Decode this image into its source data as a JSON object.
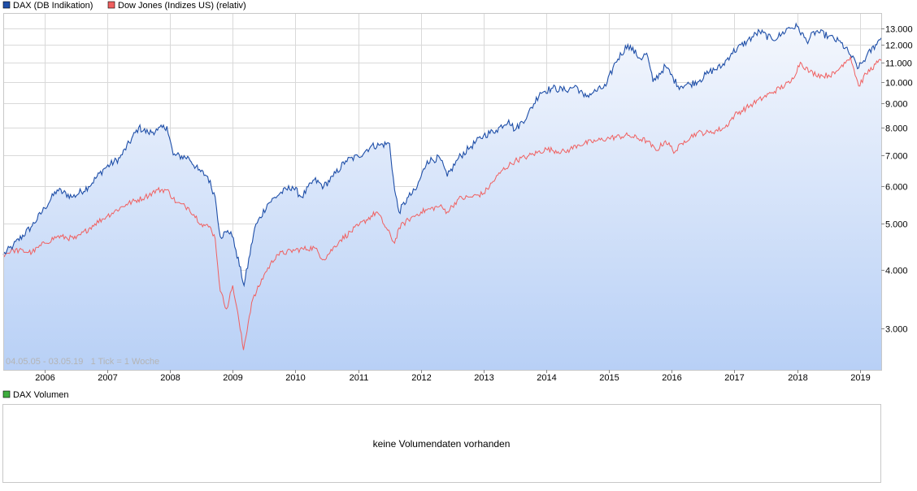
{
  "colors": {
    "dax_line": "#1f4fa8",
    "dow_line": "#f06060",
    "volume_legend": "#3fae3f",
    "grid": "#d9d9d9",
    "area_top": "#f4f7fd",
    "area_bottom": "#b8d0f6"
  },
  "legend": {
    "dax": "DAX (DB Indikation)",
    "dow": "Dow Jones (Indizes US) (relativ)"
  },
  "info_text": "04.05.05 - 03.05.19   1 Tick = 1 Woche",
  "volume": {
    "legend": "DAX Volumen",
    "message": "keine Volumendaten vorhanden"
  },
  "chart_data": {
    "type": "line",
    "title": "",
    "xlabel": "",
    "ylabel": "",
    "yscale": "log",
    "xlim": [
      2005.34,
      2019.34
    ],
    "ylim": [
      2450,
      14000
    ],
    "x_ticks": [
      2006,
      2007,
      2008,
      2009,
      2010,
      2011,
      2012,
      2013,
      2014,
      2015,
      2016,
      2017,
      2018,
      2019
    ],
    "x_tick_labels": [
      "2006",
      "2007",
      "2008",
      "2009",
      "2010",
      "2011",
      "2012",
      "2013",
      "2014",
      "2015",
      "2016",
      "2017",
      "2018",
      "2019"
    ],
    "y_ticks": [
      3000,
      4000,
      5000,
      6000,
      7000,
      8000,
      9000,
      10000,
      11000,
      12000,
      13000
    ],
    "y_tick_labels": [
      "3.000",
      "4.000",
      "5.000",
      "6.000",
      "7.000",
      "8.000",
      "9.000",
      "10.000",
      "11.000",
      "12.000",
      "13.000"
    ],
    "series": [
      {
        "name": "DAX (DB Indikation)",
        "x": [
          2005.34,
          2005.5,
          2005.8,
          2006.0,
          2006.2,
          2006.45,
          2006.7,
          2006.95,
          2007.2,
          2007.5,
          2007.65,
          2007.8,
          2007.95,
          2008.05,
          2008.3,
          2008.45,
          2008.6,
          2008.72,
          2008.8,
          2008.9,
          2008.97,
          2009.05,
          2009.18,
          2009.35,
          2009.55,
          2009.75,
          2009.95,
          2010.1,
          2010.3,
          2010.45,
          2010.6,
          2010.8,
          2011.0,
          2011.2,
          2011.35,
          2011.5,
          2011.58,
          2011.65,
          2011.8,
          2011.92,
          2012.1,
          2012.3,
          2012.42,
          2012.6,
          2012.8,
          2013.0,
          2013.2,
          2013.4,
          2013.5,
          2013.7,
          2013.9,
          2014.1,
          2014.3,
          2014.48,
          2014.6,
          2014.75,
          2014.95,
          2015.1,
          2015.3,
          2015.5,
          2015.6,
          2015.7,
          2015.9,
          2016.1,
          2016.3,
          2016.45,
          2016.6,
          2016.8,
          2016.95,
          2017.2,
          2017.4,
          2017.6,
          2017.75,
          2017.85,
          2018.0,
          2018.15,
          2018.3,
          2018.5,
          2018.7,
          2018.85,
          2018.98,
          2019.1,
          2019.25,
          2019.34
        ],
        "values": [
          4300,
          4500,
          4950,
          5400,
          5900,
          5700,
          6000,
          6550,
          6900,
          8000,
          7800,
          7900,
          8050,
          7000,
          6900,
          6500,
          6300,
          5700,
          4700,
          4800,
          4810,
          4400,
          3700,
          4900,
          5500,
          5800,
          6000,
          5700,
          6200,
          6000,
          6300,
          6800,
          6950,
          7300,
          7350,
          7400,
          5900,
          5300,
          5700,
          5900,
          6800,
          6900,
          6300,
          6900,
          7300,
          7700,
          7900,
          8300,
          7900,
          8500,
          9500,
          9700,
          9600,
          9800,
          9300,
          9500,
          9800,
          11000,
          12000,
          11200,
          11500,
          10000,
          10800,
          9800,
          9900,
          10100,
          10500,
          10800,
          11500,
          12200,
          12800,
          12300,
          12600,
          13000,
          13100,
          12200,
          12800,
          12500,
          12100,
          11400,
          10700,
          11300,
          12000,
          12400
        ]
      },
      {
        "name": "Dow Jones (Indizes US) (relativ)",
        "x": [
          2005.34,
          2005.5,
          2005.8,
          2006.0,
          2006.2,
          2006.5,
          2006.8,
          2007.0,
          2007.3,
          2007.6,
          2007.8,
          2007.95,
          2008.1,
          2008.3,
          2008.5,
          2008.65,
          2008.72,
          2008.8,
          2008.9,
          2009.0,
          2009.1,
          2009.17,
          2009.3,
          2009.5,
          2009.7,
          2010.0,
          2010.3,
          2010.45,
          2010.7,
          2011.0,
          2011.3,
          2011.58,
          2011.65,
          2011.8,
          2012.0,
          2012.3,
          2012.42,
          2012.6,
          2012.8,
          2013.0,
          2013.3,
          2013.5,
          2013.7,
          2014.0,
          2014.3,
          2014.5,
          2014.8,
          2015.0,
          2015.3,
          2015.6,
          2015.75,
          2015.9,
          2016.05,
          2016.2,
          2016.4,
          2016.6,
          2016.85,
          2017.0,
          2017.3,
          2017.6,
          2017.9,
          2018.05,
          2018.2,
          2018.4,
          2018.6,
          2018.75,
          2018.85,
          2018.98,
          2019.1,
          2019.25,
          2019.34
        ],
        "values": [
          4300,
          4400,
          4350,
          4550,
          4700,
          4650,
          5000,
          5200,
          5500,
          5700,
          5900,
          5900,
          5550,
          5400,
          5000,
          4900,
          4650,
          3600,
          3300,
          3700,
          3100,
          2700,
          3400,
          3900,
          4300,
          4400,
          4450,
          4200,
          4600,
          4950,
          5300,
          4550,
          4900,
          5100,
          5300,
          5450,
          5300,
          5650,
          5700,
          5800,
          6500,
          6800,
          6950,
          7200,
          7100,
          7350,
          7500,
          7600,
          7700,
          7500,
          7150,
          7500,
          7100,
          7500,
          7800,
          7800,
          8000,
          8500,
          9000,
          9500,
          10000,
          11000,
          10500,
          10300,
          10400,
          11000,
          11300,
          9800,
          10400,
          10900,
          11100
        ]
      }
    ]
  }
}
